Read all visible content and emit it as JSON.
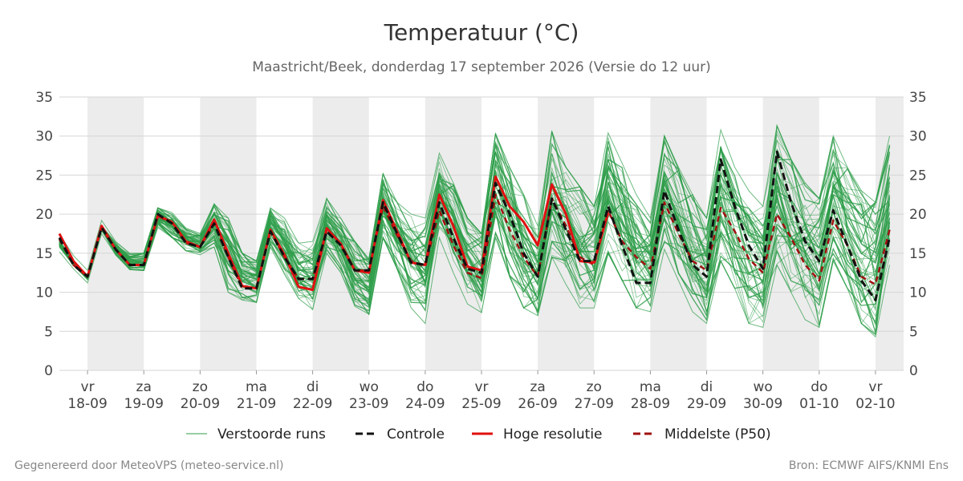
{
  "chart_data": {
    "type": "line",
    "title": "Temperatuur (°C)",
    "subtitle": "Maastricht/Beek, donderdag 17 september 2026 (Versie do 12 uur)",
    "ylim": [
      0,
      35
    ],
    "y_ticks": [
      0,
      5,
      10,
      15,
      20,
      25,
      30,
      35
    ],
    "grid": true,
    "legend_position": "bottom",
    "x_range": [
      "2026-09-17 12:00",
      "2026-10-02 12:00"
    ],
    "x_ticks": [
      {
        "date": "2026-09-18",
        "day": "vr",
        "label": "18-09"
      },
      {
        "date": "2026-09-19",
        "day": "za",
        "label": "19-09"
      },
      {
        "date": "2026-09-20",
        "day": "zo",
        "label": "20-09"
      },
      {
        "date": "2026-09-21",
        "day": "ma",
        "label": "21-09"
      },
      {
        "date": "2026-09-22",
        "day": "di",
        "label": "22-09"
      },
      {
        "date": "2026-09-23",
        "day": "wo",
        "label": "23-09"
      },
      {
        "date": "2026-09-24",
        "day": "do",
        "label": "24-09"
      },
      {
        "date": "2026-09-25",
        "day": "vr",
        "label": "25-09"
      },
      {
        "date": "2026-09-26",
        "day": "za",
        "label": "26-09"
      },
      {
        "date": "2026-09-27",
        "day": "zo",
        "label": "27-09"
      },
      {
        "date": "2026-09-28",
        "day": "ma",
        "label": "28-09"
      },
      {
        "date": "2026-09-29",
        "day": "di",
        "label": "29-09"
      },
      {
        "date": "2026-09-30",
        "day": "wo",
        "label": "30-09"
      },
      {
        "date": "2026-10-01",
        "day": "do",
        "label": "01-10"
      },
      {
        "date": "2026-10-02",
        "day": "vr",
        "label": "02-10"
      }
    ],
    "shaded_periods": [
      [
        "2026-09-18",
        "2026-09-19"
      ],
      [
        "2026-09-20",
        "2026-09-21"
      ],
      [
        "2026-09-22",
        "2026-09-23"
      ],
      [
        "2026-09-24",
        "2026-09-25"
      ],
      [
        "2026-09-26",
        "2026-09-27"
      ],
      [
        "2026-09-28",
        "2026-09-29"
      ],
      [
        "2026-09-30",
        "2026-10-01"
      ],
      [
        "2026-10-02",
        "2026-10-02 12:00"
      ]
    ],
    "times": [
      "2026-09-17 12:00",
      "2026-09-17 18:00",
      "2026-09-18 00:00",
      "2026-09-18 06:00",
      "2026-09-18 12:00",
      "2026-09-18 18:00",
      "2026-09-19 00:00",
      "2026-09-19 06:00",
      "2026-09-19 12:00",
      "2026-09-19 18:00",
      "2026-09-20 00:00",
      "2026-09-20 06:00",
      "2026-09-20 12:00",
      "2026-09-20 18:00",
      "2026-09-21 00:00",
      "2026-09-21 06:00",
      "2026-09-21 12:00",
      "2026-09-21 18:00",
      "2026-09-22 00:00",
      "2026-09-22 06:00",
      "2026-09-22 12:00",
      "2026-09-22 18:00",
      "2026-09-23 00:00",
      "2026-09-23 06:00",
      "2026-09-23 12:00",
      "2026-09-23 18:00",
      "2026-09-24 00:00",
      "2026-09-24 06:00",
      "2026-09-24 12:00",
      "2026-09-24 18:00",
      "2026-09-25 00:00",
      "2026-09-25 06:00",
      "2026-09-25 12:00",
      "2026-09-25 18:00",
      "2026-09-26 00:00",
      "2026-09-26 06:00",
      "2026-09-26 12:00",
      "2026-09-26 18:00",
      "2026-09-27 00:00",
      "2026-09-27 06:00",
      "2026-09-27 12:00",
      "2026-09-27 18:00",
      "2026-09-28 00:00",
      "2026-09-28 06:00",
      "2026-09-28 12:00",
      "2026-09-28 18:00",
      "2026-09-29 00:00",
      "2026-09-29 06:00",
      "2026-09-29 12:00",
      "2026-09-29 18:00",
      "2026-09-30 00:00",
      "2026-09-30 06:00",
      "2026-09-30 12:00",
      "2026-09-30 18:00",
      "2026-10-01 00:00",
      "2026-10-01 06:00",
      "2026-10-01 12:00",
      "2026-10-01 18:00",
      "2026-10-02 00:00",
      "2026-10-02 06:00",
      "2026-10-02 12:00"
    ],
    "series": [
      {
        "name": "Controle",
        "color": "#111111",
        "style": "dashed",
        "values": [
          17,
          13.5,
          12,
          18.3,
          15.5,
          13.5,
          13.5,
          20,
          18.8,
          16.3,
          15.8,
          18.8,
          14.5,
          10.5,
          10.5,
          17.8,
          14.5,
          11.7,
          11.7,
          17.8,
          16,
          12.8,
          12.8,
          21.5,
          17.5,
          13.8,
          13.5,
          21.5,
          17,
          13,
          12.5,
          24,
          20,
          15,
          12,
          22,
          18,
          14,
          14,
          21,
          16,
          11.2,
          11.2,
          23,
          18,
          13.5,
          12,
          27,
          21,
          16,
          13,
          28,
          21.5,
          16.5,
          14,
          20.5,
          16,
          11.5,
          9,
          17
        ]
      },
      {
        "name": "Hoge resolutie",
        "color": "#e01010",
        "style": "solid",
        "values": [
          17.5,
          14,
          12,
          18.5,
          15.5,
          13.5,
          13.5,
          19.8,
          19,
          16.5,
          15.8,
          19.3,
          15,
          10.8,
          10.5,
          18,
          14.8,
          10.7,
          10.3,
          18.2,
          16.2,
          12.8,
          12.5,
          21.8,
          17.8,
          13.8,
          13.5,
          22.5,
          18.5,
          13.3,
          12.8,
          24.8,
          21,
          19,
          16,
          23.8,
          20,
          14,
          13.8,
          20.2
        ]
      },
      {
        "name": "Middelste (P50)",
        "color": "#a01010",
        "style": "dashed",
        "values": [
          16.8,
          13.5,
          12,
          18.2,
          15.5,
          13.5,
          13.5,
          19.8,
          18.8,
          16.3,
          15.8,
          18.8,
          14.5,
          10.5,
          10.5,
          17.8,
          14.5,
          11.7,
          11.7,
          17.8,
          16,
          12.8,
          12.8,
          21,
          17.3,
          14,
          13.3,
          20.5,
          16,
          12.5,
          11.8,
          22.5,
          18,
          14.5,
          12,
          22,
          18.5,
          14.5,
          13.5,
          20.5,
          16.5,
          14.5,
          13,
          21.5,
          17.5,
          14,
          12.8,
          20.8,
          17.8,
          14.3,
          12.5,
          20,
          17,
          13.5,
          11.5,
          19.2,
          16,
          12,
          11,
          18
        ]
      }
    ],
    "ensemble": {
      "name": "Verstoorde runs",
      "color": "#2e9e4a",
      "member_count": 50,
      "spread_min": [
        15.2,
        13,
        11.2,
        17.5,
        14.8,
        12.9,
        12.8,
        18.3,
        17,
        15.3,
        14.8,
        15.8,
        10,
        9,
        8.7,
        15.8,
        12.3,
        9.2,
        7.8,
        15,
        12.5,
        8.2,
        7.2,
        17,
        13,
        8,
        6,
        17,
        12.5,
        8.5,
        7.4,
        17,
        12,
        8,
        7,
        14.5,
        11,
        8,
        8,
        15,
        11.5,
        8,
        7.5,
        15.5,
        11.5,
        7.5,
        6,
        14,
        10.5,
        6,
        5.5,
        13.5,
        10,
        6.5,
        5.5,
        14,
        10.5,
        6,
        4.3,
        13.5
      ],
      "spread_max": [
        17.5,
        14.7,
        12.8,
        19.2,
        16.5,
        15,
        15,
        20.8,
        20.2,
        18.2,
        17.5,
        21.3,
        19.5,
        15,
        14,
        20.8,
        19.5,
        16.3,
        16.5,
        22,
        19.5,
        16.5,
        14.3,
        25.2,
        21.5,
        20,
        19.5,
        27.8,
        24,
        19.5,
        17.5,
        30.3,
        26,
        22.5,
        18.5,
        30.6,
        26,
        23.5,
        21,
        30.4,
        26.5,
        22.5,
        19.5,
        30,
        26,
        22.5,
        19.5,
        30.8,
        26,
        23,
        21,
        31.3,
        27,
        24,
        22,
        30,
        26,
        23,
        21.5,
        30
      ]
    }
  },
  "legend": [
    {
      "label": "Verstoorde runs",
      "color": "#2e9e4a",
      "style": "thin"
    },
    {
      "label": "Controle",
      "color": "#111111",
      "style": "dashed"
    },
    {
      "label": "Hoge resolutie",
      "color": "#e01010",
      "style": "solid"
    },
    {
      "label": "Middelste (P50)",
      "color": "#a01010",
      "style": "dashed"
    }
  ],
  "footer": {
    "left": "Gegenereerd door MeteoVPS (meteo-service.nl)",
    "right": "Bron: ECMWF AIFS/KNMI Ens"
  }
}
